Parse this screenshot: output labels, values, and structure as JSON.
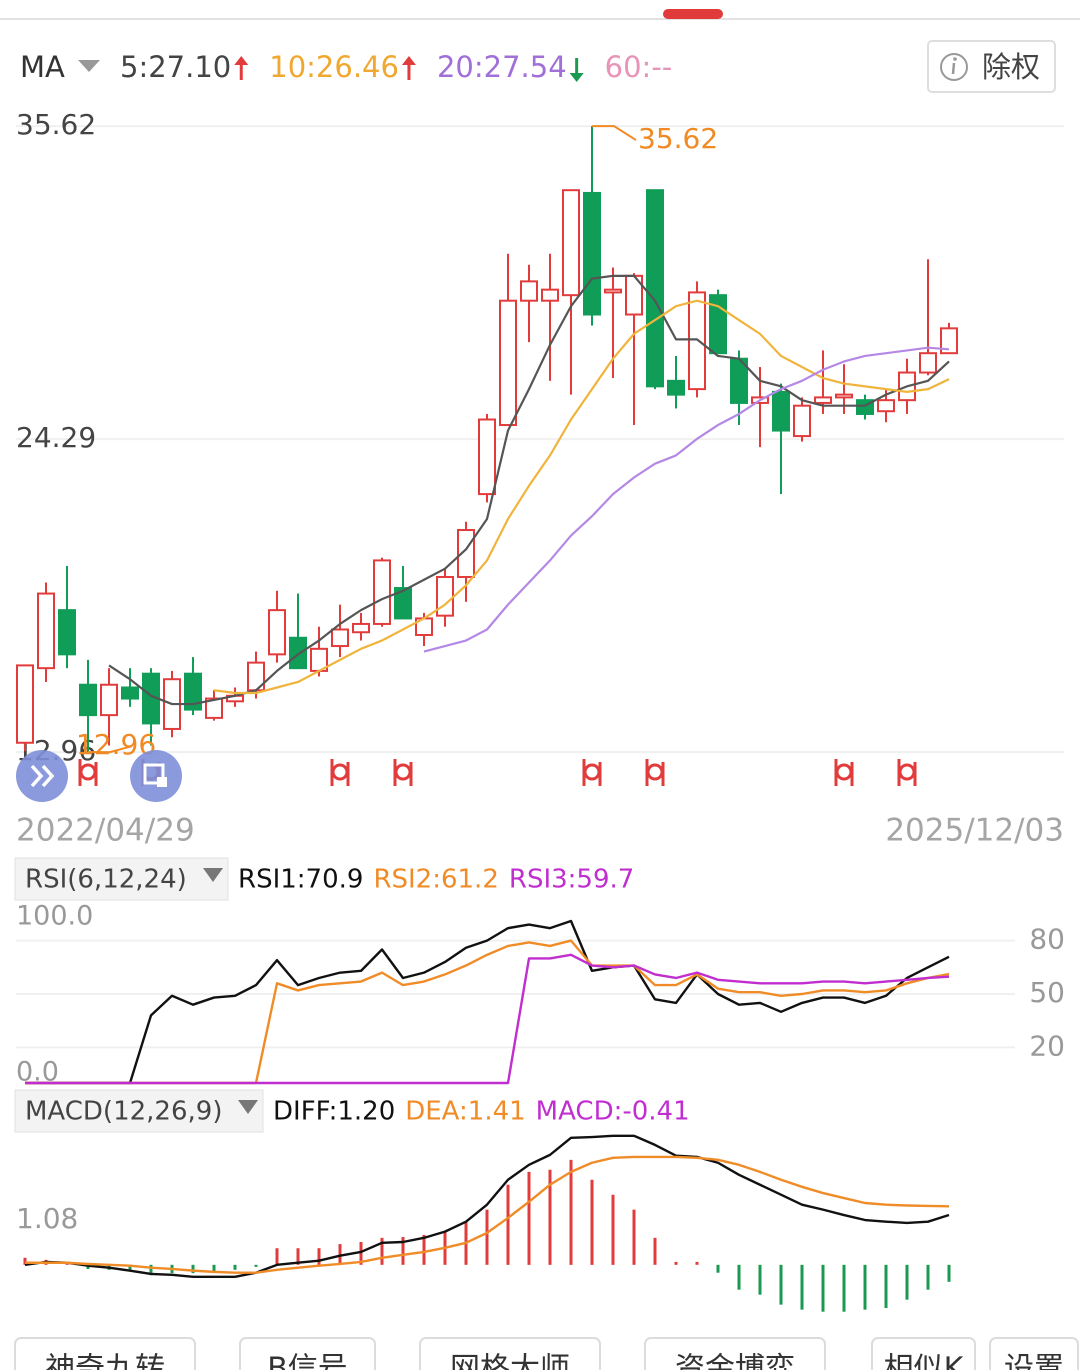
{
  "header": {
    "indicator": "MA",
    "ma60": "60:--",
    "button": "除权"
  },
  "tabs": [
    "神奇九转",
    "B信号",
    "网格大师",
    "资金博弈",
    "相似K",
    "设置"
  ],
  "chart_data": [
    {
      "type": "candlestick",
      "categories": [
        "2022/04/29",
        null,
        null,
        null,
        null,
        null,
        null,
        null,
        null,
        null,
        null,
        null,
        null,
        null,
        null,
        null,
        null,
        null,
        null,
        null,
        null,
        null,
        null,
        null,
        null,
        null,
        null,
        null,
        null,
        null,
        null,
        null,
        null,
        null,
        null,
        null,
        null,
        null,
        null,
        null,
        null,
        null,
        null,
        null,
        "2025/12/03"
      ],
      "open": [
        13.3,
        16.0,
        18.1,
        15.4,
        14.3,
        15.3,
        15.8,
        13.8,
        15.8,
        14.2,
        14.8,
        15.2,
        16.5,
        17.1,
        15.9,
        16.8,
        17.3,
        17.6,
        18.9,
        17.2,
        17.9,
        19.3,
        22.3,
        24.8,
        29.3,
        29.3,
        29.5,
        33.2,
        29.6,
        28.8,
        33.3,
        26.4,
        26.1,
        29.5,
        27.2,
        25.6,
        26.0,
        24.4,
        25.6,
        25.8,
        25.7,
        25.3,
        25.7,
        26.7,
        27.4
      ],
      "high": [
        16.1,
        19.1,
        19.7,
        16.3,
        16.0,
        16.0,
        16.0,
        15.9,
        16.4,
        15.2,
        15.3,
        16.6,
        18.8,
        18.7,
        17.5,
        18.3,
        18.0,
        20.0,
        19.7,
        18.0,
        19.6,
        21.3,
        25.2,
        31.0,
        30.6,
        31.0,
        33.3,
        35.62,
        30.5,
        30.3,
        33.3,
        27.3,
        30.0,
        29.7,
        27.5,
        26.9,
        26.3,
        25.8,
        27.5,
        27.0,
        25.9,
        26.1,
        27.2,
        30.8,
        28.5
      ],
      "low": [
        13.0,
        15.5,
        16.0,
        12.96,
        13.2,
        14.6,
        13.2,
        13.5,
        14.3,
        14.1,
        14.6,
        14.9,
        16.2,
        16.0,
        15.7,
        16.4,
        17.0,
        17.5,
        17.8,
        16.8,
        17.5,
        18.4,
        22.0,
        24.8,
        27.8,
        26.4,
        25.9,
        28.4,
        26.5,
        24.8,
        26.1,
        25.4,
        25.8,
        27.4,
        24.8,
        24.0,
        22.3,
        24.2,
        25.2,
        25.2,
        25.0,
        24.9,
        25.2,
        26.6,
        27.4
      ],
      "close": [
        16.1,
        18.7,
        16.5,
        14.3,
        15.4,
        14.9,
        14.0,
        15.6,
        14.5,
        14.9,
        15.0,
        16.2,
        18.1,
        16.0,
        16.7,
        17.4,
        17.6,
        19.9,
        17.8,
        17.8,
        19.3,
        21.0,
        25.0,
        29.3,
        30.0,
        29.7,
        33.3,
        28.8,
        29.7,
        30.2,
        26.2,
        25.9,
        29.6,
        27.4,
        25.6,
        25.8,
        24.6,
        25.5,
        25.8,
        25.9,
        25.2,
        25.7,
        26.7,
        27.4,
        28.3
      ],
      "up_color": "#e23b3b",
      "down_color": "#0f9d58",
      "ylim": [
        11.59,
        36.13
      ],
      "yticks": [
        35.62,
        24.29,
        12.96
      ],
      "grid": true,
      "annotations": [
        {
          "value": 35.62
        },
        {
          "value": 12.96
        }
      ],
      "annotation_color": "#f08a24",
      "series": [
        {
          "name": "5:27.10",
          "color": "#555555",
          "text_color": "#444444",
          "trend": "up",
          "values": [
            null,
            null,
            null,
            null,
            16.1,
            15.6,
            15.0,
            14.7,
            14.7,
            14.85,
            15.0,
            15.2,
            15.9,
            16.5,
            17.0,
            17.6,
            18.1,
            18.5,
            18.8,
            19.2,
            19.6,
            20.3,
            21.4,
            24.6,
            26.1,
            27.7,
            29.1,
            30.1,
            30.2,
            30.2,
            29.3,
            27.9,
            27.9,
            27.3,
            27.2,
            26.4,
            26.2,
            25.7,
            25.5,
            25.5,
            25.5,
            25.9,
            26.2,
            26.4,
            27.1
          ]
        },
        {
          "name": "10:26.46",
          "color": "#f0b43c",
          "text_color": "#f0a830",
          "trend": "up",
          "values": [
            null,
            null,
            null,
            null,
            null,
            null,
            null,
            null,
            null,
            15.2,
            15.1,
            15.1,
            15.3,
            15.5,
            15.9,
            16.3,
            16.7,
            17.0,
            17.4,
            17.8,
            18.3,
            19.0,
            19.9,
            21.4,
            22.6,
            23.7,
            25.0,
            26.1,
            27.2,
            28.1,
            28.6,
            29.1,
            29.3,
            29.1,
            28.6,
            28.1,
            27.3,
            26.9,
            26.5,
            26.3,
            26.2,
            26.1,
            26.0,
            26.1,
            26.46
          ]
        },
        {
          "name": "20:27.54",
          "color": "#b488e4",
          "text_color": "#a070d8",
          "trend": "down",
          "values": [
            null,
            null,
            null,
            null,
            null,
            null,
            null,
            null,
            null,
            null,
            null,
            null,
            null,
            null,
            null,
            null,
            null,
            null,
            null,
            16.6,
            16.8,
            17.0,
            17.4,
            18.3,
            19.1,
            19.9,
            20.8,
            21.5,
            22.3,
            22.9,
            23.4,
            23.7,
            24.3,
            24.8,
            25.2,
            25.7,
            26.1,
            26.4,
            26.8,
            27.1,
            27.3,
            27.4,
            27.5,
            27.6,
            27.54
          ]
        }
      ]
    },
    {
      "type": "line",
      "title": "RSI(6,12,24)",
      "ylim": [
        0,
        100
      ],
      "yticks": [
        {
          "value": 100,
          "label": "100.0"
        },
        80,
        50,
        20,
        {
          "value": 0,
          "label": "0.0"
        }
      ],
      "grid": true,
      "series": [
        {
          "name": "RSI1:70.9",
          "color": "#111111",
          "values": [
            0,
            0,
            0,
            0,
            0,
            0,
            38,
            49,
            44,
            48,
            49,
            55,
            69,
            55,
            59,
            62,
            63,
            75,
            59,
            62,
            68,
            76,
            80,
            87,
            89,
            87,
            91,
            63,
            65,
            66,
            47,
            45,
            61,
            50,
            44,
            45,
            40,
            45,
            48,
            48,
            45,
            49,
            59,
            65,
            70.9
          ]
        },
        {
          "name": "RSI2:61.2",
          "color": "#f08c28",
          "values": [
            0,
            0,
            0,
            0,
            0,
            0,
            0,
            0,
            0,
            0,
            0,
            0,
            56,
            52,
            55,
            56,
            57,
            62,
            55,
            57,
            61,
            66,
            72,
            77,
            79,
            77,
            80,
            66,
            66,
            66,
            55,
            55,
            61,
            53,
            51,
            51,
            49,
            50,
            52,
            52,
            51,
            52,
            56,
            59,
            61.2
          ]
        },
        {
          "name": "RSI3:59.7",
          "color": "#c02ed0",
          "values": [
            0,
            0,
            0,
            0,
            0,
            0,
            0,
            0,
            0,
            0,
            0,
            0,
            0,
            0,
            0,
            0,
            0,
            0,
            0,
            0,
            0,
            0,
            0,
            0,
            70,
            70,
            72,
            66,
            65,
            66,
            61,
            59,
            62,
            58,
            57,
            56,
            56,
            56,
            57,
            57,
            56,
            57,
            58,
            59,
            59.7
          ]
        }
      ]
    },
    {
      "type": "combo",
      "title": "MACD(12,26,9)",
      "ylim": [
        -1.33,
        3.37
      ],
      "yticks": [
        1.08
      ],
      "grid": false,
      "series": [
        {
          "name": "DIFF:1.20",
          "type": "line",
          "color": "#111111",
          "values": [
            0,
            0.07,
            0.05,
            -0.02,
            -0.07,
            -0.14,
            -0.22,
            -0.24,
            -0.29,
            -0.29,
            -0.29,
            -0.19,
            0,
            0.05,
            0.1,
            0.22,
            0.31,
            0.53,
            0.55,
            0.65,
            0.8,
            1.04,
            1.45,
            2.05,
            2.41,
            2.65,
            3.06,
            3.08,
            3.11,
            3.11,
            2.89,
            2.63,
            2.6,
            2.46,
            2.17,
            1.93,
            1.69,
            1.45,
            1.33,
            1.2,
            1.08,
            1.04,
            1.01,
            1.04,
            1.2
          ]
        },
        {
          "name": "DEA:1.41",
          "type": "line",
          "color": "#f08c28",
          "values": [
            0.05,
            0.05,
            0.05,
            0.02,
            0,
            -0.02,
            -0.07,
            -0.1,
            -0.14,
            -0.17,
            -0.19,
            -0.19,
            -0.12,
            -0.07,
            -0.02,
            0.02,
            0.07,
            0.17,
            0.24,
            0.31,
            0.41,
            0.53,
            0.77,
            1.13,
            1.52,
            1.93,
            2.24,
            2.46,
            2.58,
            2.6,
            2.6,
            2.6,
            2.58,
            2.53,
            2.41,
            2.24,
            2.05,
            1.88,
            1.73,
            1.61,
            1.49,
            1.45,
            1.43,
            1.42,
            1.41
          ]
        },
        {
          "name": "MACD:-0.41",
          "type": "bar",
          "color": "#c02ed0",
          "up_color": "#e23b3b",
          "down_color": "#1a9a50",
          "values": [
            0.17,
            0.12,
            0.05,
            -0.1,
            -0.12,
            -0.15,
            -0.25,
            -0.2,
            -0.2,
            -0.15,
            -0.12,
            -0.05,
            0.4,
            0.4,
            0.4,
            0.5,
            0.55,
            0.65,
            0.67,
            0.72,
            0.8,
            1.04,
            1.33,
            1.93,
            2.24,
            2.29,
            2.53,
            2.05,
            1.69,
            1.33,
            0.65,
            0.07,
            0.07,
            -0.19,
            -0.6,
            -0.72,
            -0.96,
            -1.08,
            -1.13,
            -1.13,
            -1.08,
            -1.04,
            -0.84,
            -0.6,
            -0.41
          ]
        }
      ]
    }
  ]
}
